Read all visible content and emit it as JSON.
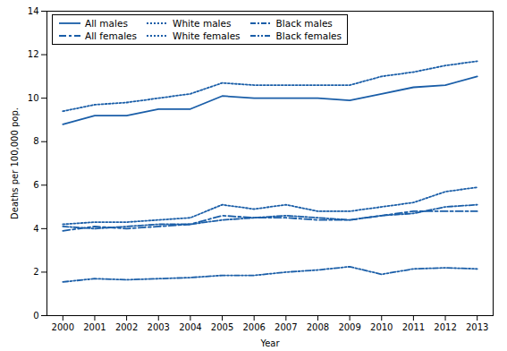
{
  "chart_data": {
    "type": "line",
    "xlabel": "Year",
    "ylabel": "Deaths per 100,000 pop.",
    "x": [
      2000,
      2001,
      2002,
      2003,
      2004,
      2005,
      2006,
      2007,
      2008,
      2009,
      2010,
      2011,
      2012,
      2013
    ],
    "xlim": [
      1999.5,
      2013.5
    ],
    "xticks": [
      2000,
      2001,
      2002,
      2003,
      2004,
      2005,
      2006,
      2007,
      2008,
      2009,
      2010,
      2011,
      2012,
      2013
    ],
    "ylim": [
      0,
      14
    ],
    "yticks": [
      0,
      2,
      4,
      6,
      8,
      10,
      12,
      14
    ],
    "color": "#1a5ea8",
    "grid": false,
    "legend": "upper left",
    "series": [
      {
        "name": "All males",
        "line_style": "solid",
        "values": [
          8.8,
          9.2,
          9.2,
          9.5,
          9.5,
          10.1,
          10.0,
          10.0,
          10.0,
          9.9,
          10.2,
          10.5,
          10.6,
          11.0
        ]
      },
      {
        "name": "White males",
        "line_style": "dotted",
        "values": [
          9.4,
          9.7,
          9.8,
          10.0,
          10.2,
          10.7,
          10.6,
          10.6,
          10.6,
          10.6,
          11.0,
          11.2,
          11.5,
          11.7
        ]
      },
      {
        "name": "Black males",
        "line_style": "dashdot",
        "values": [
          4.1,
          4.0,
          4.1,
          4.2,
          4.2,
          4.4,
          4.5,
          4.6,
          4.5,
          4.4,
          4.6,
          4.7,
          5.0,
          5.1
        ]
      },
      {
        "name": "All females",
        "line_style": "longdash_shortdash",
        "values": [
          3.9,
          4.1,
          4.0,
          4.1,
          4.2,
          4.6,
          4.5,
          4.5,
          4.4,
          4.4,
          4.6,
          4.8,
          4.8,
          4.8
        ]
      },
      {
        "name": "White females",
        "line_style": "dotted",
        "values": [
          4.2,
          4.3,
          4.3,
          4.4,
          4.5,
          5.1,
          4.9,
          5.1,
          4.8,
          4.8,
          5.0,
          5.2,
          5.7,
          5.9
        ]
      },
      {
        "name": "Black females",
        "line_style": "dashdotdot",
        "values": [
          1.55,
          1.7,
          1.65,
          1.7,
          1.75,
          1.85,
          1.85,
          2.0,
          2.1,
          2.25,
          1.9,
          2.15,
          2.2,
          2.15
        ]
      }
    ]
  }
}
